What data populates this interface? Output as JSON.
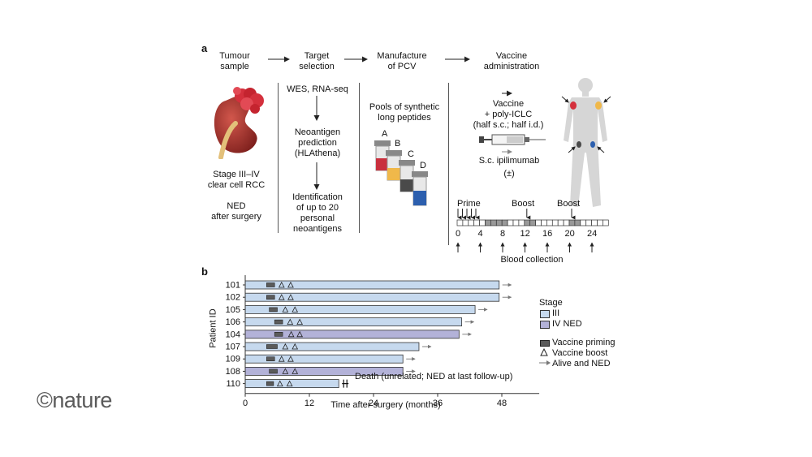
{
  "panel_a": {
    "label": "a",
    "steps": [
      "Tumour\nsample",
      "Target\nselection",
      "Manufacture\nof PCV",
      "Vaccine\nadministration"
    ],
    "tumour_caption": "Stage III–IV\nclear cell RCC",
    "tumour_caption2": "NED\nafter surgery",
    "target_items": [
      "WES, RNA-seq",
      "Neoantigen\nprediction\n(HLAthena)",
      "Identification\nof up to 20\npersonal\nneoantigens"
    ],
    "pcv_title": "Pools of synthetic\nlong peptides",
    "vials": [
      "A",
      "B",
      "C",
      "D"
    ],
    "vaccine_text": "Vaccine\n+ poly-ICLC\n(half s.c.; half i.d.)",
    "ipilimumab_text": "S.c. ipilimumab",
    "ipilimumab_sub": "(±)",
    "timeline": {
      "prime_label": "Prime",
      "boost_label": "Boost",
      "ticks": [
        "0",
        "4",
        "8",
        "12",
        "16",
        "20",
        "24"
      ],
      "blood_label": "Blood collection"
    },
    "colors": {
      "vial_a": "#c9303e",
      "vial_b": "#f0b84a",
      "vial_c": "#4a4a4a",
      "vial_d": "#2c5fae",
      "kidney": "#b03a30",
      "tumour": "#d4303c"
    }
  },
  "panel_b": {
    "label": "b",
    "chart_data": {
      "type": "bar",
      "orientation": "horizontal",
      "ylabel": "Patient ID",
      "xlabel": "Time after surgery (months)",
      "xlim": [
        0,
        55
      ],
      "xticks": [
        "0",
        "12",
        "24",
        "36",
        "48"
      ],
      "patients": [
        {
          "id": "101",
          "stage": "III",
          "end": 47.5,
          "prime": [
            4,
            5.5
          ],
          "boosts": [
            6.8,
            8.5
          ],
          "alive": true
        },
        {
          "id": "102",
          "stage": "III",
          "end": 47.5,
          "prime": [
            4,
            5.5
          ],
          "boosts": [
            6.8,
            8.5
          ],
          "alive": true
        },
        {
          "id": "105",
          "stage": "III",
          "end": 43,
          "prime": [
            4.5,
            6
          ],
          "boosts": [
            7.5,
            9.3
          ],
          "alive": true
        },
        {
          "id": "106",
          "stage": "III",
          "end": 40.5,
          "prime": [
            5.5,
            7
          ],
          "boosts": [
            8.4,
            10.2
          ],
          "alive": true
        },
        {
          "id": "104",
          "stage": "IV NED",
          "end": 40,
          "prime": [
            5.5,
            7
          ],
          "boosts": [
            8.6,
            10.2
          ],
          "alive": true
        },
        {
          "id": "107",
          "stage": "III",
          "end": 32.5,
          "prime": [
            4,
            6
          ],
          "boosts": [
            7.5,
            9.3
          ],
          "alive": true
        },
        {
          "id": "109",
          "stage": "III",
          "end": 29.5,
          "prime": [
            4,
            5.5
          ],
          "boosts": [
            6.8,
            8.5
          ],
          "alive": true
        },
        {
          "id": "108",
          "stage": "IV NED",
          "end": 29.5,
          "prime": [
            4.5,
            6
          ],
          "boosts": [
            7.5,
            9.3
          ],
          "alive": true
        },
        {
          "id": "110",
          "stage": "III",
          "end": 17.5,
          "prime": [
            4,
            5.3
          ],
          "boosts": [
            6.5,
            8.3
          ],
          "alive": false
        }
      ],
      "death_label": "Death (unrelated; NED at last follow-up)",
      "legend": {
        "stage_title": "Stage",
        "stage_items": [
          "III",
          "IV NED"
        ],
        "marker_items": [
          "Vaccine priming",
          "Vaccine boost",
          "Alive and NED"
        ]
      },
      "colors": {
        "III": "#c6d9ee",
        "IV NED": "#b3b2d8",
        "prime": "#5b5b5b"
      }
    }
  },
  "logo": "©nature"
}
